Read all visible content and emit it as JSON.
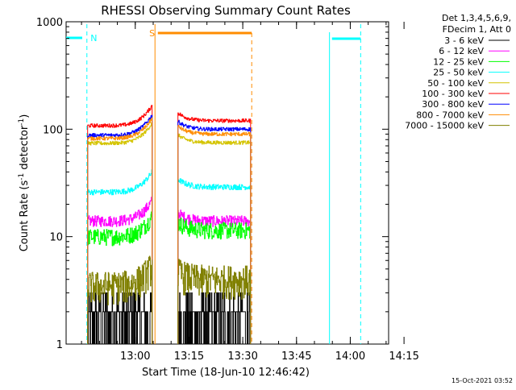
{
  "chart_data": {
    "type": "line",
    "title": "RHESSI Observing Summary Count Rates",
    "xlabel": "Start Time (18-Jun-10 12:46:42)",
    "ylabel": "Count Rate (s",
    "ylabel_sup": "-1",
    "ylabel_tail": " detector",
    "ylabel_tail_sup": "-1",
    "ylabel_close": ")",
    "yscale": "log",
    "xlim_minutes": [
      -6,
      84
    ],
    "ylim": [
      1,
      1000
    ],
    "x_ticks": [
      {
        "label": "13:00",
        "t": 13.3
      },
      {
        "label": "13:15",
        "t": 28.3
      },
      {
        "label": "13:30",
        "t": 43.3
      },
      {
        "label": "13:45",
        "t": 58.3
      },
      {
        "label": "14:00",
        "t": 73.3
      },
      {
        "label": "14:15",
        "t": 88.3
      }
    ],
    "y_ticks": [
      {
        "label": "1",
        "v": 1
      },
      {
        "label": "10",
        "v": 10
      },
      {
        "label": "100",
        "v": 100
      },
      {
        "label": "1000",
        "v": 1000
      }
    ],
    "legend_header": [
      "Det 1,3,4,5,6,9,",
      "FDecim 1, Att 0"
    ],
    "series": [
      {
        "name": "3 - 6 keV",
        "color": "#000000",
        "level1": 2,
        "level2": 2,
        "noise": 1.5
      },
      {
        "name": "6 - 12 keV",
        "color": "#ff00ff",
        "level1": 14,
        "level2": 14,
        "noise": 0.12
      },
      {
        "name": "12 - 25 keV",
        "color": "#00ff00",
        "level1": 10,
        "level2": 11.5,
        "noise": 0.18
      },
      {
        "name": "25 - 50 keV",
        "color": "#00ffff",
        "level1": 26,
        "level2": 29,
        "noise": 0.06
      },
      {
        "name": "50 - 100 keV",
        "color": "#d4c400",
        "level1": 74,
        "level2": 75,
        "noise": 0.04
      },
      {
        "name": "100 - 300 keV",
        "color": "#ff0000",
        "level1": 108,
        "level2": 120,
        "noise": 0.04
      },
      {
        "name": "300 - 800 keV",
        "color": "#0000ff",
        "level1": 88,
        "level2": 100,
        "noise": 0.04
      },
      {
        "name": "800 - 7000 keV",
        "color": "#ff8c00",
        "level1": 82,
        "level2": 90,
        "noise": 0.04
      },
      {
        "name": "7000 - 15000 keV",
        "color": "#808000",
        "level1": 3.5,
        "level2": 4,
        "noise": 0.35
      }
    ],
    "segments": [
      [
        0.0,
        18.0
      ],
      [
        25.2,
        45.5
      ]
    ],
    "markers": {
      "N": {
        "label": "N",
        "color": "#00ffff"
      },
      "S": {
        "label": "S",
        "color": "#ff8c00"
      }
    }
  },
  "footer": {
    "timestamp": "15-Oct-2021 03:52"
  }
}
